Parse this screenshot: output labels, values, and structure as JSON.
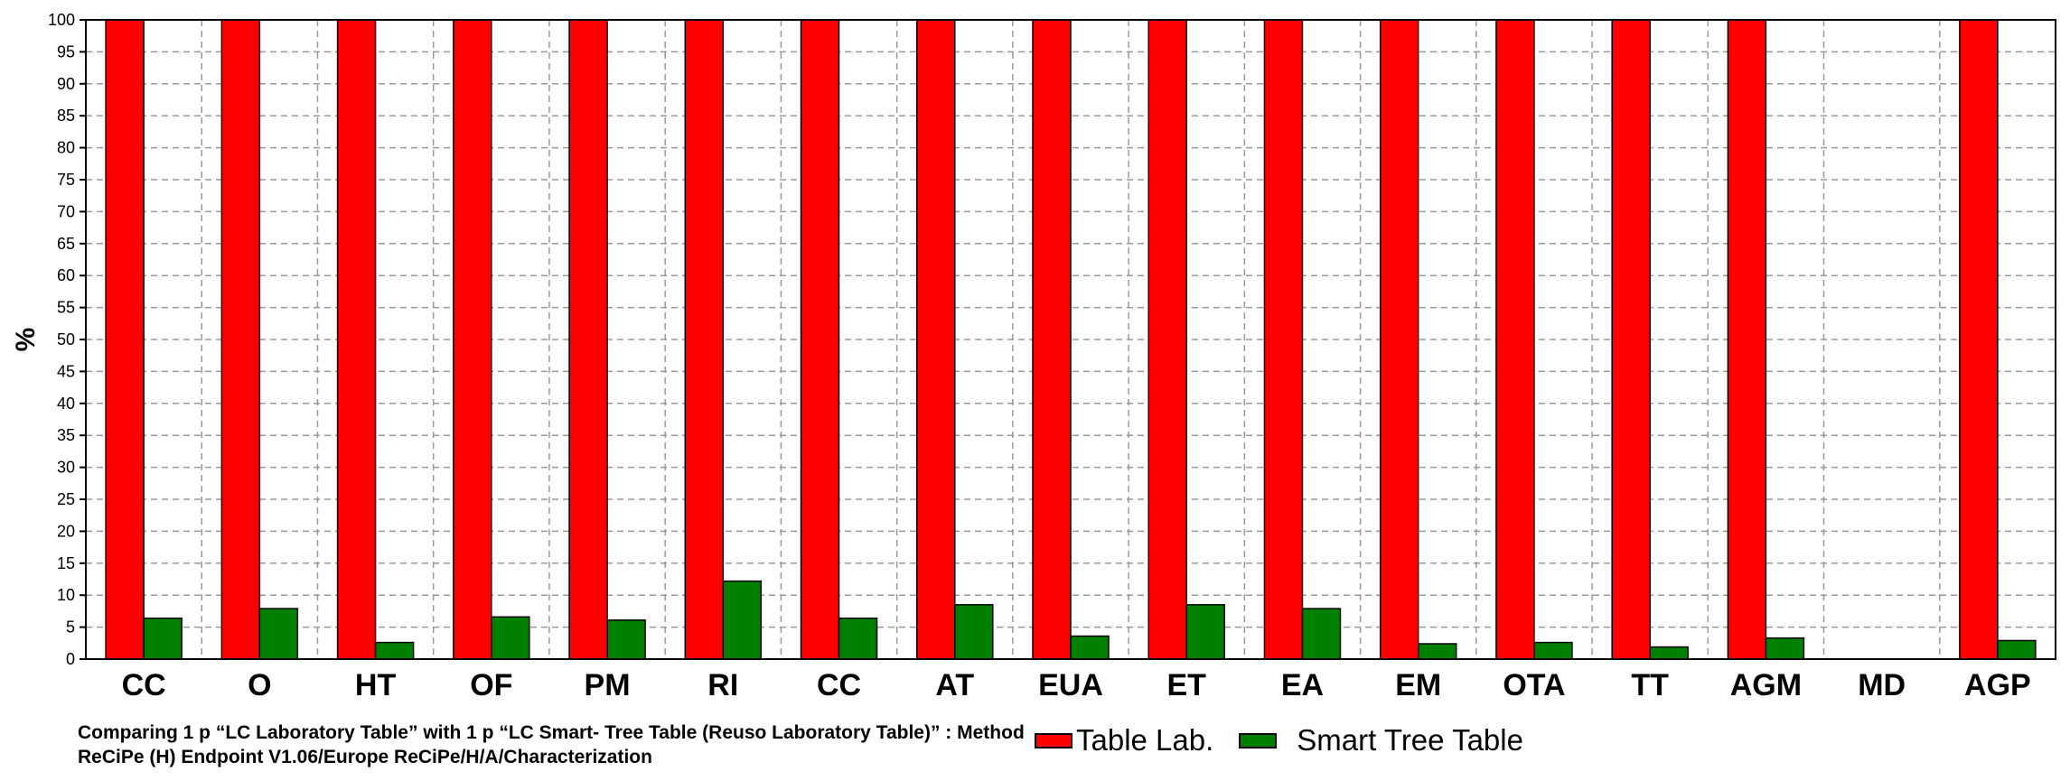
{
  "chart_data": {
    "type": "bar",
    "ylabel": "%",
    "ylim": [
      0,
      100
    ],
    "yticks": [
      "0",
      "5",
      "10",
      "15",
      "20",
      "25",
      "30",
      "35",
      "40",
      "45",
      "50",
      "55",
      "60",
      "65",
      "70",
      "75",
      "80",
      "85",
      "90",
      "95",
      "100"
    ],
    "grid": true,
    "categories": [
      "CC",
      "O",
      "HT",
      "OF",
      "PM",
      "RI",
      "CC",
      "AT",
      "EUA",
      "ET",
      "EA",
      "EM",
      "OTA",
      "TT",
      "AGM",
      "MD",
      "AGP"
    ],
    "series": [
      {
        "name": "Table Lab.",
        "color": "#ff0000",
        "values": [
          100,
          100,
          100,
          100,
          100,
          100,
          100,
          100,
          100,
          100,
          100,
          100,
          100,
          100,
          100,
          0,
          100
        ]
      },
      {
        "name": "Smart Tree Table",
        "color": "#008000",
        "values": [
          6.4,
          7.9,
          2.6,
          6.6,
          6.1,
          12.2,
          6.4,
          8.5,
          3.6,
          8.5,
          7.9,
          2.4,
          2.6,
          1.9,
          3.3,
          0,
          2.9
        ]
      }
    ],
    "legend_position": "bottom",
    "caption": "Comparing 1 p “LC Laboratory Table” with 1 p “LC Smart- Tree Table (Reuso Laboratory Table)”  : Method ReCiPe (H) Endpoint V1.06/Europe ReCiPe/H/A/Characterization"
  }
}
